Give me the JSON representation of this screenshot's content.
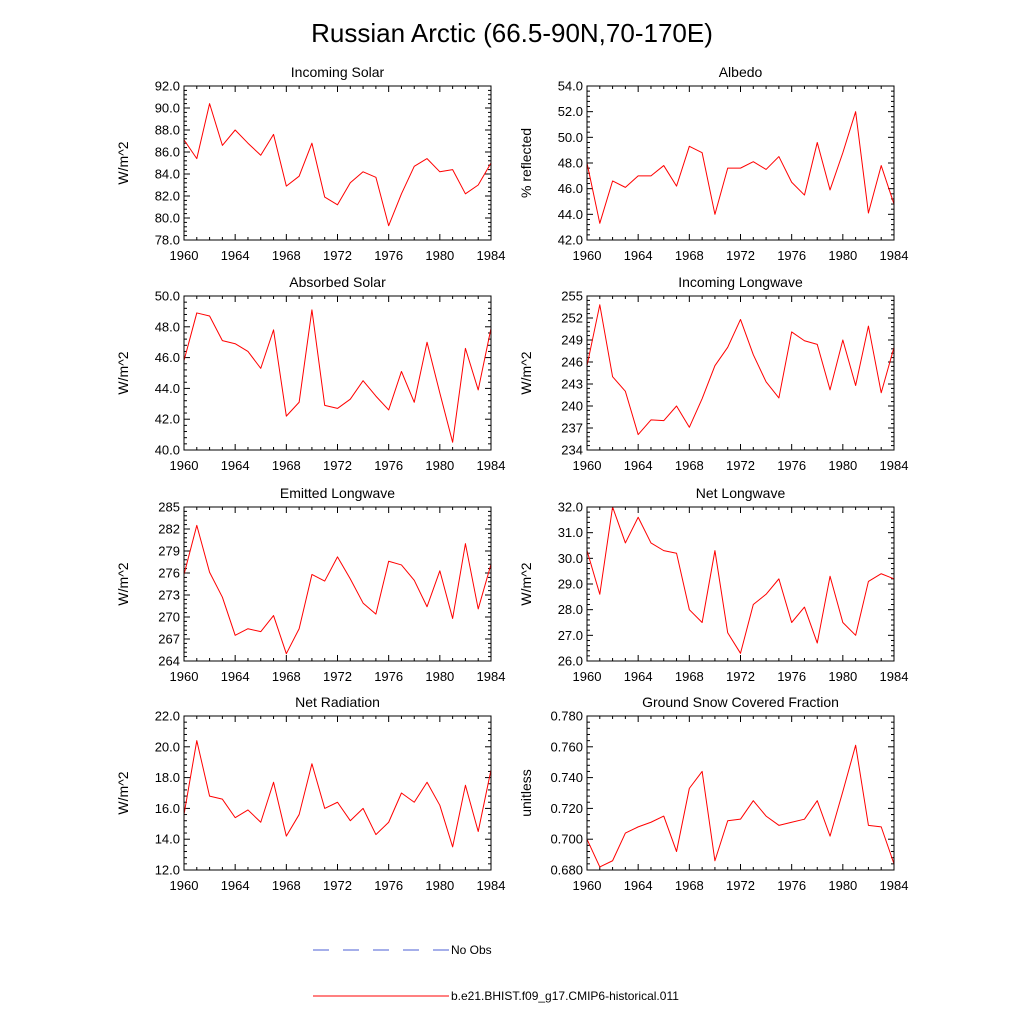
{
  "title": "Russian Arctic (66.5-90N,70-170E)",
  "legend": {
    "obs_label": "No Obs",
    "model_label": "b.e21.BHIST.f09_g17.CMIP6-historical.011",
    "obs_color": "#4b5fd6",
    "model_color": "#ff0000"
  },
  "chart_data": [
    {
      "type": "line",
      "title": "Incoming Solar",
      "ylabel": "W/m^2",
      "xlim": [
        1960,
        1984
      ],
      "ylim": [
        78.0,
        92.0
      ],
      "xticks": [
        1960,
        1964,
        1968,
        1972,
        1976,
        1980,
        1984
      ],
      "yticks": [
        78.0,
        80.0,
        82.0,
        84.0,
        86.0,
        88.0,
        90.0,
        92.0
      ],
      "ytick_labels": [
        "78.0",
        "80.0",
        "82.0",
        "84.0",
        "86.0",
        "88.0",
        "90.0",
        "92.0"
      ],
      "x": [
        1960,
        1961,
        1962,
        1963,
        1964,
        1965,
        1966,
        1967,
        1968,
        1969,
        1970,
        1971,
        1972,
        1973,
        1974,
        1975,
        1976,
        1977,
        1978,
        1979,
        1980,
        1981,
        1982,
        1983,
        1984
      ],
      "series": [
        {
          "name": "b.e21.BHIST.f09_g17.CMIP6-historical.011",
          "values": [
            87.1,
            85.4,
            90.4,
            86.6,
            88.0,
            86.8,
            85.7,
            87.6,
            82.9,
            83.8,
            86.8,
            81.9,
            81.2,
            83.2,
            84.2,
            83.7,
            79.3,
            82.2,
            84.7,
            85.4,
            84.2,
            84.4,
            82.2,
            83.0,
            85.0
          ]
        }
      ]
    },
    {
      "type": "line",
      "title": "Albedo",
      "ylabel": "% reflected",
      "xlim": [
        1960,
        1984
      ],
      "ylim": [
        42.0,
        54.0
      ],
      "xticks": [
        1960,
        1964,
        1968,
        1972,
        1976,
        1980,
        1984
      ],
      "yticks": [
        42.0,
        44.0,
        46.0,
        48.0,
        50.0,
        52.0,
        54.0
      ],
      "ytick_labels": [
        "42.0",
        "44.0",
        "46.0",
        "48.0",
        "50.0",
        "52.0",
        "54.0"
      ],
      "x": [
        1960,
        1961,
        1962,
        1963,
        1964,
        1965,
        1966,
        1967,
        1968,
        1969,
        1970,
        1971,
        1972,
        1973,
        1974,
        1975,
        1976,
        1977,
        1978,
        1979,
        1980,
        1981,
        1982,
        1983,
        1984
      ],
      "series": [
        {
          "name": "b.e21.BHIST.f09_g17.CMIP6-historical.011",
          "values": [
            48.0,
            43.3,
            46.6,
            46.1,
            47.0,
            47.0,
            47.8,
            46.2,
            49.3,
            48.8,
            44.0,
            47.6,
            47.6,
            48.1,
            47.5,
            48.5,
            46.5,
            45.5,
            49.6,
            45.9,
            48.8,
            52.0,
            44.1,
            47.8,
            44.8
          ]
        }
      ]
    },
    {
      "type": "line",
      "title": "Absorbed Solar",
      "ylabel": "W/m^2",
      "xlim": [
        1960,
        1984
      ],
      "ylim": [
        40.0,
        50.0
      ],
      "xticks": [
        1960,
        1964,
        1968,
        1972,
        1976,
        1980,
        1984
      ],
      "yticks": [
        40.0,
        42.0,
        44.0,
        46.0,
        48.0,
        50.0
      ],
      "ytick_labels": [
        "40.0",
        "42.0",
        "44.0",
        "46.0",
        "48.0",
        "50.0"
      ],
      "x": [
        1960,
        1961,
        1962,
        1963,
        1964,
        1965,
        1966,
        1967,
        1968,
        1969,
        1970,
        1971,
        1972,
        1973,
        1974,
        1975,
        1976,
        1977,
        1978,
        1979,
        1980,
        1981,
        1982,
        1983,
        1984
      ],
      "series": [
        {
          "name": "b.e21.BHIST.f09_g17.CMIP6-historical.011",
          "values": [
            45.8,
            48.9,
            48.7,
            47.1,
            46.9,
            46.4,
            45.3,
            47.8,
            42.2,
            43.1,
            49.1,
            42.9,
            42.7,
            43.3,
            44.5,
            43.5,
            42.6,
            45.1,
            43.1,
            47.0,
            43.7,
            40.5,
            46.6,
            43.9,
            47.9
          ]
        }
      ]
    },
    {
      "type": "line",
      "title": "Incoming Longwave",
      "ylabel": "W/m^2",
      "xlim": [
        1960,
        1984
      ],
      "ylim": [
        234,
        255
      ],
      "xticks": [
        1960,
        1964,
        1968,
        1972,
        1976,
        1980,
        1984
      ],
      "yticks": [
        234,
        237,
        240,
        243,
        246,
        249,
        252,
        255
      ],
      "ytick_labels": [
        "234",
        "237",
        "240",
        "243",
        "246",
        "249",
        "252",
        "255"
      ],
      "x": [
        1960,
        1961,
        1962,
        1963,
        1964,
        1965,
        1966,
        1967,
        1968,
        1969,
        1970,
        1971,
        1972,
        1973,
        1974,
        1975,
        1976,
        1977,
        1978,
        1979,
        1980,
        1981,
        1982,
        1983,
        1984
      ],
      "series": [
        {
          "name": "b.e21.BHIST.f09_g17.CMIP6-historical.011",
          "values": [
            245.5,
            253.8,
            244.0,
            242.0,
            236.1,
            238.1,
            238.0,
            240.0,
            237.1,
            241.0,
            245.5,
            248.0,
            251.8,
            247.0,
            243.3,
            241.1,
            250.1,
            248.9,
            248.4,
            242.2,
            249.0,
            242.8,
            250.9,
            241.8,
            248.0
          ]
        }
      ]
    },
    {
      "type": "line",
      "title": "Emitted Longwave",
      "ylabel": "W/m^2",
      "xlim": [
        1960,
        1984
      ],
      "ylim": [
        264,
        285
      ],
      "xticks": [
        1960,
        1964,
        1968,
        1972,
        1976,
        1980,
        1984
      ],
      "yticks": [
        264,
        267,
        270,
        273,
        276,
        279,
        282,
        285
      ],
      "ytick_labels": [
        "264",
        "267",
        "270",
        "273",
        "276",
        "279",
        "282",
        "285"
      ],
      "x": [
        1960,
        1961,
        1962,
        1963,
        1964,
        1965,
        1966,
        1967,
        1968,
        1969,
        1970,
        1971,
        1972,
        1973,
        1974,
        1975,
        1976,
        1977,
        1978,
        1979,
        1980,
        1981,
        1982,
        1983,
        1984
      ],
      "series": [
        {
          "name": "b.e21.BHIST.f09_g17.CMIP6-historical.011",
          "values": [
            275.8,
            282.5,
            276.1,
            272.7,
            267.5,
            268.4,
            268.0,
            270.2,
            265.0,
            268.4,
            275.8,
            274.9,
            278.2,
            275.2,
            271.9,
            270.4,
            277.6,
            277.1,
            275.0,
            271.4,
            276.3,
            269.8,
            280.0,
            271.1,
            277.2
          ]
        }
      ]
    },
    {
      "type": "line",
      "title": "Net Longwave",
      "ylabel": "W/m^2",
      "xlim": [
        1960,
        1984
      ],
      "ylim": [
        26.0,
        32.0
      ],
      "xticks": [
        1960,
        1964,
        1968,
        1972,
        1976,
        1980,
        1984
      ],
      "yticks": [
        26.0,
        27.0,
        28.0,
        29.0,
        30.0,
        31.0,
        32.0
      ],
      "ytick_labels": [
        "26.0",
        "27.0",
        "28.0",
        "29.0",
        "30.0",
        "31.0",
        "32.0"
      ],
      "x": [
        1960,
        1961,
        1962,
        1963,
        1964,
        1965,
        1966,
        1967,
        1968,
        1969,
        1970,
        1971,
        1972,
        1973,
        1974,
        1975,
        1976,
        1977,
        1978,
        1979,
        1980,
        1981,
        1982,
        1983,
        1984
      ],
      "series": [
        {
          "name": "b.e21.BHIST.f09_g17.CMIP6-historical.011",
          "values": [
            30.3,
            28.6,
            32.0,
            30.6,
            31.6,
            30.6,
            30.3,
            30.2,
            28.0,
            27.5,
            30.3,
            27.1,
            26.3,
            28.2,
            28.6,
            29.2,
            27.5,
            28.1,
            26.7,
            29.3,
            27.5,
            27.0,
            29.1,
            29.4,
            29.2
          ]
        }
      ]
    },
    {
      "type": "line",
      "title": "Net Radiation",
      "ylabel": "W/m^2",
      "xlim": [
        1960,
        1984
      ],
      "ylim": [
        12.0,
        22.0
      ],
      "xticks": [
        1960,
        1964,
        1968,
        1972,
        1976,
        1980,
        1984
      ],
      "yticks": [
        12.0,
        14.0,
        16.0,
        18.0,
        20.0,
        22.0
      ],
      "ytick_labels": [
        "12.0",
        "14.0",
        "16.0",
        "18.0",
        "20.0",
        "22.0"
      ],
      "x": [
        1960,
        1961,
        1962,
        1963,
        1964,
        1965,
        1966,
        1967,
        1968,
        1969,
        1970,
        1971,
        1972,
        1973,
        1974,
        1975,
        1976,
        1977,
        1978,
        1979,
        1980,
        1981,
        1982,
        1983,
        1984
      ],
      "series": [
        {
          "name": "b.e21.BHIST.f09_g17.CMIP6-historical.011",
          "values": [
            15.6,
            20.4,
            16.8,
            16.6,
            15.4,
            15.9,
            15.1,
            17.7,
            14.2,
            15.6,
            18.9,
            16.0,
            16.4,
            15.2,
            16.0,
            14.3,
            15.1,
            17.0,
            16.4,
            17.7,
            16.2,
            13.5,
            17.5,
            14.5,
            18.5
          ]
        }
      ]
    },
    {
      "type": "line",
      "title": "Ground Snow Covered Fraction",
      "ylabel": "unitless",
      "xlim": [
        1960,
        1984
      ],
      "ylim": [
        0.68,
        0.78
      ],
      "xticks": [
        1960,
        1964,
        1968,
        1972,
        1976,
        1980,
        1984
      ],
      "yticks": [
        0.68,
        0.7,
        0.72,
        0.74,
        0.76,
        0.78
      ],
      "ytick_labels": [
        "0.680",
        "0.700",
        "0.720",
        "0.740",
        "0.760",
        "0.780"
      ],
      "x": [
        1960,
        1961,
        1962,
        1963,
        1964,
        1965,
        1966,
        1967,
        1968,
        1969,
        1970,
        1971,
        1972,
        1973,
        1974,
        1975,
        1976,
        1977,
        1978,
        1979,
        1980,
        1981,
        1982,
        1983,
        1984
      ],
      "series": [
        {
          "name": "b.e21.BHIST.f09_g17.CMIP6-historical.011",
          "values": [
            0.7,
            0.682,
            0.686,
            0.704,
            0.708,
            0.711,
            0.715,
            0.692,
            0.733,
            0.744,
            0.686,
            0.712,
            0.713,
            0.725,
            0.715,
            0.709,
            0.711,
            0.713,
            0.725,
            0.702,
            0.731,
            0.761,
            0.709,
            0.708,
            0.684
          ]
        }
      ]
    }
  ]
}
